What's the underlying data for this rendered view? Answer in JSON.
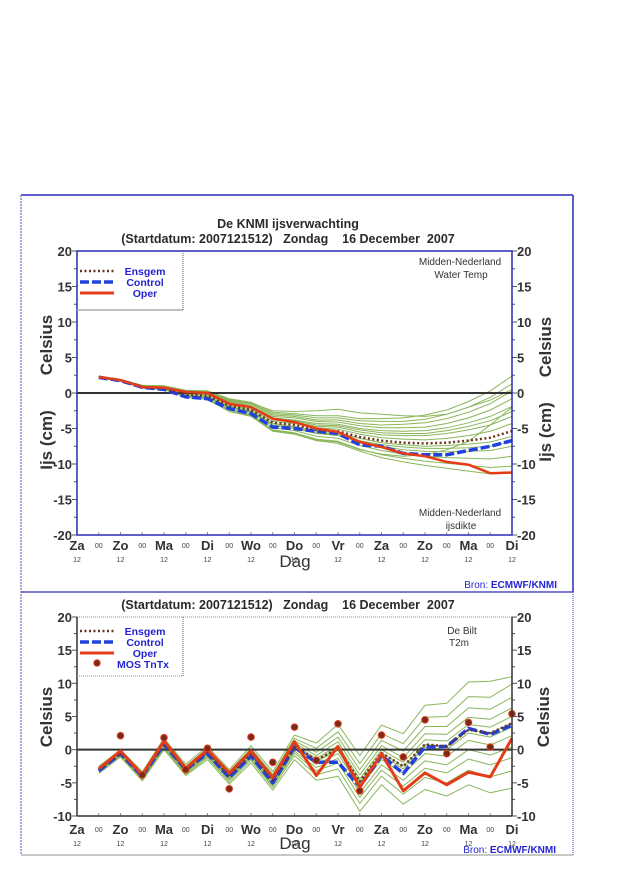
{
  "top_panel": {
    "title": "De KNMI ijsverwachting",
    "subtitle": "(Startdatum: 2007121512)   Zondag    16 December  2007",
    "region_upper": [
      "Midden-Nederland",
      "Water Temp"
    ],
    "region_lower": [
      "Midden-Nederland",
      "ijsdikte"
    ],
    "source_prefix": "Bron: ",
    "source_name": "ECMWF/KNMI",
    "legend": [
      "Ensgem",
      "Control",
      "Oper"
    ]
  },
  "bottom_panel": {
    "subtitle": "(Startdatum: 2007121512)   Zondag    16 December  2007",
    "station": [
      "De Bilt",
      "T2m"
    ],
    "source_prefix": "Bron: ",
    "source_name": "ECMWF/KNMI",
    "legend": [
      "Ensgem",
      "Control",
      "Oper",
      "MOS TnTx"
    ]
  },
  "colors": {
    "frame": "#2a2ab8",
    "ensemble": "#8ab65a",
    "ensgem": "#6a3520",
    "control": "#2040e0",
    "oper": "#e43c18",
    "mos_fill": "#7a2a18",
    "mos_stroke": "#e04020",
    "legend_text": "#2424d0"
  },
  "chart_data": [
    {
      "type": "line",
      "title": "De KNMI ijsverwachting",
      "subtitle": "(Startdatum: 2007121512)   Zondag    16 December  2007",
      "xlabel": "Dag",
      "ylabel_upper": "Celsius",
      "ylabel_lower": "Ijs (cm)",
      "ylim": [
        -20,
        20
      ],
      "yticks": [
        20,
        15,
        10,
        5,
        0,
        -5,
        -10,
        -15,
        -20
      ],
      "x_tick_labels": [
        "Za",
        "Zo",
        "Ma",
        "Di",
        "Wo",
        "Do",
        "Vr",
        "Za",
        "Zo",
        "Ma",
        "Di"
      ],
      "x_tick_sublabel": "12",
      "x_minor_label": "00",
      "x": [
        "Zo 00",
        "Zo 12",
        "Ma 00",
        "Ma 12",
        "Di 00",
        "Di 12",
        "Wo 00",
        "Wo 12",
        "Do 00",
        "Do 12",
        "Vr 00",
        "Vr 12",
        "Za 00",
        "Za 12",
        "Zo 00",
        "Zo 12",
        "Ma 00",
        "Ma 12",
        "Di 00",
        "Di 12"
      ],
      "legend": "top-left",
      "series": [
        {
          "name": "Ensgem",
          "style": "dotted",
          "values": [
            2.25,
            1.8,
            0.85,
            0.7,
            -0.2,
            -0.4,
            -1.8,
            -2.4,
            -4.2,
            -4.5,
            -5.2,
            -5.4,
            -6.2,
            -6.7,
            -7.0,
            -7.1,
            -7.0,
            -6.7,
            -6.3,
            -5.35
          ]
        },
        {
          "name": "Control",
          "style": "dashed",
          "values": [
            2.2,
            1.75,
            0.8,
            0.5,
            -0.55,
            -0.8,
            -2.2,
            -2.9,
            -4.8,
            -5.0,
            -5.4,
            -5.7,
            -7.3,
            -7.5,
            -8.5,
            -8.7,
            -8.7,
            -8.1,
            -7.5,
            -6.7
          ]
        },
        {
          "name": "Oper",
          "style": "solid",
          "values": [
            2.25,
            1.8,
            0.85,
            0.75,
            0.15,
            0.0,
            -1.5,
            -2.0,
            -3.6,
            -4.1,
            -5.0,
            -5.5,
            -6.9,
            -7.6,
            -8.5,
            -8.9,
            -9.7,
            -10.1,
            -11.3,
            -11.2
          ]
        }
      ],
      "ensemble_members": [
        [
          2.4,
          1.9,
          1.1,
          1.0,
          0.4,
          0.3,
          -0.8,
          -1.3,
          -2.7,
          -2.9,
          -3.2,
          -3.2,
          -3.6,
          -3.6,
          -3.5,
          -3.1,
          -2.4,
          -1.2,
          0.3,
          2.4
        ],
        [
          2.4,
          1.9,
          1.0,
          1.0,
          0.3,
          0.2,
          -1.0,
          -1.5,
          -2.9,
          -3.1,
          -3.5,
          -3.5,
          -3.9,
          -4.0,
          -4.0,
          -3.7,
          -3.0,
          -2.0,
          -0.6,
          1.3
        ],
        [
          2.3,
          1.9,
          1.0,
          1.0,
          0.3,
          0.2,
          -0.9,
          -1.4,
          -2.5,
          -2.6,
          -2.5,
          -2.3,
          -2.8,
          -3.0,
          -3.2,
          -3.3,
          -3.0,
          -2.0,
          -1.0,
          0.5
        ],
        [
          2.3,
          1.9,
          1.0,
          0.9,
          0.2,
          0.1,
          -1.1,
          -1.6,
          -3.1,
          -3.3,
          -3.8,
          -3.8,
          -4.3,
          -4.5,
          -4.4,
          -4.2,
          -3.6,
          -2.7,
          -1.5,
          0.3
        ],
        [
          2.3,
          1.9,
          1.0,
          0.9,
          0.1,
          0.0,
          -1.2,
          -1.8,
          -3.3,
          -3.5,
          -4.0,
          -4.1,
          -4.6,
          -4.9,
          -4.9,
          -4.8,
          -4.3,
          -3.5,
          -2.4,
          -0.8
        ],
        [
          2.3,
          1.9,
          1.0,
          0.9,
          0.1,
          -0.1,
          -1.4,
          -1.9,
          -3.5,
          -3.8,
          -4.3,
          -4.4,
          -5.0,
          -5.3,
          -5.4,
          -5.3,
          -4.9,
          -4.2,
          -3.3,
          -1.9
        ],
        [
          2.3,
          1.8,
          0.9,
          0.8,
          0.0,
          -0.2,
          -1.4,
          -2.0,
          -3.6,
          -3.9,
          -4.5,
          -4.6,
          -5.2,
          -5.6,
          -5.7,
          -5.7,
          -5.3,
          -4.7,
          -3.9,
          -2.6
        ],
        [
          2.3,
          1.8,
          0.9,
          0.8,
          -0.1,
          -0.2,
          -1.5,
          -2.1,
          -3.8,
          -4.1,
          -4.7,
          -4.8,
          -5.5,
          -5.9,
          -6.0,
          -6.0,
          -5.7,
          -5.2,
          -4.5,
          -3.3
        ],
        [
          2.3,
          1.8,
          0.9,
          0.8,
          -0.1,
          -0.3,
          -1.7,
          -2.3,
          -4.0,
          -4.3,
          -4.9,
          -5.1,
          -5.8,
          -6.3,
          -6.5,
          -6.6,
          -6.4,
          -6.0,
          -5.4,
          -4.3
        ],
        [
          2.2,
          1.8,
          0.8,
          0.7,
          -0.3,
          -0.5,
          -1.9,
          -2.5,
          -4.3,
          -4.7,
          -5.4,
          -5.6,
          -6.4,
          -7.0,
          -7.3,
          -7.5,
          -7.4,
          -7.2,
          -6.9,
          -6.1
        ],
        [
          2.2,
          1.8,
          0.8,
          0.6,
          -0.3,
          -0.5,
          -2.0,
          -2.6,
          -4.5,
          -4.8,
          -5.6,
          -5.8,
          -6.7,
          -7.3,
          -7.6,
          -7.8,
          -7.8,
          -7.7,
          -7.5,
          -6.8
        ],
        [
          2.2,
          1.8,
          0.8,
          0.6,
          -0.4,
          -0.6,
          -2.1,
          -2.7,
          -4.6,
          -5.0,
          -5.7,
          -6.0,
          -6.9,
          -7.5,
          -8.0,
          -8.2,
          -8.3,
          -8.2,
          -8.1,
          -7.5
        ],
        [
          2.2,
          1.7,
          0.7,
          0.5,
          -0.6,
          -0.9,
          -2.6,
          -3.2,
          -5.3,
          -5.7,
          -6.6,
          -6.9,
          -8.0,
          -8.6,
          -8.9,
          -8.7,
          -8.0,
          -6.8,
          -4.5,
          -2.0
        ],
        [
          2.2,
          1.8,
          0.8,
          0.6,
          -0.5,
          -0.7,
          -2.3,
          -2.9,
          -4.9,
          -5.3,
          -6.1,
          -6.4,
          -7.4,
          -8.1,
          -8.6,
          -8.9,
          -9.1,
          -9.2,
          -9.3,
          -8.9
        ],
        [
          2.2,
          1.7,
          0.7,
          0.5,
          -0.6,
          -0.8,
          -2.4,
          -3.1,
          -5.2,
          -5.6,
          -6.5,
          -6.8,
          -7.9,
          -8.7,
          -9.2,
          -9.6,
          -9.9,
          -10.2,
          -10.5,
          -10.3
        ],
        [
          2.2,
          1.7,
          0.7,
          0.5,
          -0.6,
          -0.9,
          -2.6,
          -3.3,
          -5.4,
          -5.8,
          -6.7,
          -7.1,
          -8.2,
          -9.1,
          -9.7,
          -10.2,
          -10.6,
          -11.0,
          -11.4,
          -11.3
        ]
      ],
      "reference_line": 0,
      "annotations": [
        "Midden-Nederland Water Temp",
        "Midden-Nederland ijsdikte",
        "Bron: ECMWF/KNMI"
      ]
    },
    {
      "type": "line",
      "title": "(Startdatum: 2007121512)   Zondag    16 December  2007",
      "xlabel": "Dag",
      "ylabel": "Celsius",
      "ylim": [
        -10,
        20
      ],
      "yticks": [
        20,
        15,
        10,
        5,
        0,
        -5,
        -10
      ],
      "x_tick_labels": [
        "Za",
        "Zo",
        "Ma",
        "Di",
        "Wo",
        "Do",
        "Vr",
        "Za",
        "Zo",
        "Ma",
        "Di"
      ],
      "x_tick_sublabel": "12",
      "x_minor_label": "00",
      "x": [
        "Zo 00",
        "Zo 12",
        "Ma 00",
        "Ma 12",
        "Di 00",
        "Di 12",
        "Wo 00",
        "Wo 12",
        "Do 00",
        "Do 12",
        "Vr 00",
        "Vr 12",
        "Za 00",
        "Za 12",
        "Zo 00",
        "Zo 12",
        "Ma 00",
        "Ma 12",
        "Di 00",
        "Di 12"
      ],
      "legend": "top-left",
      "series": [
        {
          "name": "Ensgem",
          "style": "dotted",
          "values": [
            -3.0,
            -0.5,
            -3.9,
            0.9,
            -3.0,
            -0.4,
            -4.0,
            -0.6,
            -4.6,
            0.5,
            -1.6,
            0.2,
            -4.8,
            -0.5,
            -2.5,
            0.8,
            0.5,
            3.0,
            2.5,
            4.0
          ]
        },
        {
          "name": "Control",
          "style": "dashed",
          "values": [
            -3.2,
            -0.6,
            -4.0,
            0.8,
            -3.0,
            -0.6,
            -4.2,
            -1.0,
            -5.0,
            0.4,
            -1.9,
            -1.9,
            -5.6,
            -0.9,
            -3.6,
            0.4,
            0.5,
            3.2,
            2.3,
            3.7
          ]
        },
        {
          "name": "Oper",
          "style": "solid",
          "values": [
            -2.9,
            -0.2,
            -3.8,
            1.3,
            -2.8,
            0.0,
            -3.5,
            -0.2,
            -4.2,
            1.2,
            -3.9,
            0.5,
            -5.7,
            -0.6,
            -6.2,
            -3.5,
            -5.3,
            -3.4,
            -4.1,
            1.7
          ]
        },
        {
          "name": "MOS TnTx",
          "style": "points",
          "values": [
            null,
            2.1,
            -3.8,
            1.8,
            -3.0,
            0.2,
            -5.9,
            1.9,
            -1.9,
            3.4,
            -1.6,
            3.9,
            -6.2,
            2.2,
            -1.1,
            4.5,
            -0.6,
            4.1,
            0.4,
            5.4
          ]
        }
      ],
      "ensemble_members": [
        [
          -2.5,
          0.0,
          -3.3,
          1.7,
          -2.2,
          0.5,
          -3.0,
          0.6,
          -3.3,
          2.2,
          1.0,
          3.8,
          -0.9,
          3.7,
          2.4,
          6.7,
          7.0,
          10.2,
          10.3,
          11.0
        ],
        [
          -2.6,
          -0.1,
          -3.5,
          1.4,
          -2.5,
          0.2,
          -3.3,
          0.2,
          -3.7,
          1.7,
          0.2,
          2.7,
          -2.1,
          2.4,
          0.9,
          4.9,
          5.0,
          8.0,
          7.9,
          9.9
        ],
        [
          -2.8,
          -0.3,
          -3.6,
          1.3,
          -2.6,
          0.0,
          -3.5,
          -0.1,
          -4.0,
          1.3,
          -0.4,
          1.9,
          -3.0,
          1.4,
          -0.2,
          3.5,
          3.5,
          6.3,
          6.1,
          7.9
        ],
        [
          -2.9,
          -0.4,
          -3.7,
          1.1,
          -2.8,
          -0.2,
          -3.7,
          -0.3,
          -4.3,
          1.0,
          -0.9,
          1.2,
          -3.8,
          0.6,
          -1.2,
          2.4,
          2.3,
          4.9,
          4.6,
          6.3
        ],
        [
          -2.9,
          -0.4,
          -3.8,
          1.0,
          -2.9,
          -0.3,
          -3.9,
          -0.5,
          -4.5,
          0.7,
          -1.3,
          0.6,
          -4.4,
          0.0,
          -1.9,
          1.5,
          1.3,
          3.8,
          3.4,
          5.0
        ],
        [
          -3.0,
          -0.5,
          -3.9,
          0.9,
          -3.0,
          -0.4,
          -4.0,
          -0.6,
          -4.6,
          0.5,
          -1.6,
          0.2,
          -4.8,
          -0.5,
          -2.5,
          0.8,
          0.5,
          3.0,
          2.5,
          4.0
        ],
        [
          -3.0,
          -0.5,
          -4.0,
          0.8,
          -3.1,
          -0.5,
          -4.1,
          -0.7,
          -4.7,
          0.4,
          -1.8,
          -0.1,
          -5.1,
          -0.8,
          -2.9,
          0.4,
          0.0,
          2.5,
          1.9,
          3.4
        ],
        [
          -3.1,
          -0.6,
          -4.1,
          0.7,
          -3.2,
          -0.6,
          -4.2,
          -0.9,
          -4.9,
          0.1,
          -2.2,
          -0.6,
          -5.7,
          -1.5,
          -3.6,
          -0.6,
          -1.0,
          1.4,
          0.7,
          2.1
        ],
        [
          -3.2,
          -0.7,
          -4.2,
          0.6,
          -3.3,
          -0.8,
          -4.4,
          -1.1,
          -5.2,
          -0.2,
          -2.7,
          -1.3,
          -6.5,
          -2.3,
          -4.6,
          -1.7,
          -2.3,
          0.0,
          -0.8,
          0.4
        ],
        [
          -3.3,
          -0.8,
          -4.3,
          0.4,
          -3.5,
          -1.0,
          -4.6,
          -1.3,
          -5.4,
          -0.5,
          -3.2,
          -2.0,
          -7.2,
          -3.1,
          -5.5,
          -2.8,
          -3.5,
          -1.4,
          -2.3,
          -1.2
        ],
        [
          -3.4,
          -0.9,
          -4.5,
          0.2,
          -3.7,
          -1.2,
          -4.9,
          -1.6,
          -5.7,
          -0.9,
          -3.8,
          -2.9,
          -8.1,
          -4.0,
          -6.7,
          -4.2,
          -5.0,
          -3.1,
          -4.1,
          -3.2
        ],
        [
          -3.6,
          -1.1,
          -4.7,
          0.0,
          -3.9,
          -1.5,
          -5.2,
          -2.0,
          -6.1,
          -1.5,
          -4.6,
          -4.0,
          -9.3,
          -5.3,
          -8.2,
          -6.0,
          -7.0,
          -5.3,
          -6.5,
          -5.8
        ]
      ],
      "reference_line": 0,
      "annotations": [
        "De Bilt T2m",
        "Bron: ECMWF/KNMI"
      ]
    }
  ]
}
